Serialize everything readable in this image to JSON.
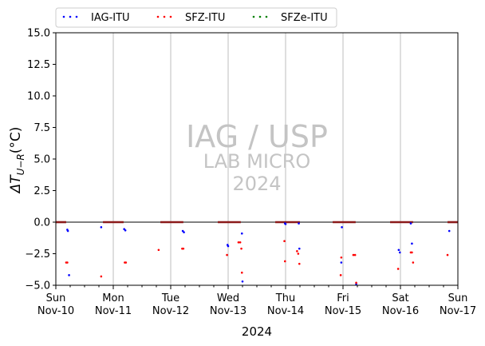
{
  "legend": [
    {
      "label": "IAG-ITU",
      "color": "#0000ff"
    },
    {
      "label": "SFZ-ITU",
      "color": "#ff0000"
    },
    {
      "label": "SFZe-ITU",
      "color": "#008000"
    }
  ],
  "watermark": {
    "line1": "IAG / USP",
    "line2": "LAB MICRO",
    "line3": "2024"
  },
  "chart_data": {
    "type": "scatter",
    "xlabel": "2024",
    "ylabel": "ΔT_{U-R}(°C)",
    "ylabel_main": "ΔT",
    "ylabel_sub": "U−R",
    "ylabel_tail": "(°C)",
    "xlim": [
      0,
      7
    ],
    "ylim": [
      -5,
      15
    ],
    "yticks": [
      -5.0,
      -2.5,
      0.0,
      2.5,
      5.0,
      7.5,
      10.0,
      12.5,
      15.0
    ],
    "ytick_labels": [
      "−5.0",
      "−2.5",
      "0.0",
      "2.5",
      "5.0",
      "7.5",
      "10.0",
      "12.5",
      "15.0"
    ],
    "xticks": [
      0,
      1,
      2,
      3,
      4,
      5,
      6,
      7
    ],
    "xtick_labels": [
      [
        "Sun",
        "Nov-10"
      ],
      [
        "Mon",
        "Nov-11"
      ],
      [
        "Tue",
        "Nov-12"
      ],
      [
        "Wed",
        "Nov-13"
      ],
      [
        "Thu",
        "Nov-14"
      ],
      [
        "Fri",
        "Nov-15"
      ],
      [
        "Sat",
        "Nov-16"
      ],
      [
        "Sun",
        "Nov-17"
      ]
    ],
    "grid": "vertical-major",
    "legend_position": "top-left",
    "reference_line_y": 0,
    "x_unit": "days since Nov-10 00:00",
    "series": [
      {
        "name": "IAG-ITU",
        "color": "#0000ff",
        "points": [
          [
            0.2,
            -0.6
          ],
          [
            0.21,
            -0.7
          ],
          [
            0.23,
            -4.2
          ],
          [
            0.79,
            -0.4
          ],
          [
            1.19,
            -0.55
          ],
          [
            1.21,
            -0.65
          ],
          [
            2.21,
            -0.7
          ],
          [
            2.23,
            -0.8
          ],
          [
            2.99,
            -1.8
          ],
          [
            3.0,
            -1.9
          ],
          [
            3.24,
            -0.9
          ],
          [
            3.25,
            -4.7
          ],
          [
            3.99,
            -0.1
          ],
          [
            4.0,
            -0.15
          ],
          [
            4.23,
            -0.1
          ],
          [
            4.24,
            -2.1
          ],
          [
            4.98,
            -0.4
          ],
          [
            4.97,
            -3.2
          ],
          [
            5.23,
            -4.9
          ],
          [
            5.97,
            -2.2
          ],
          [
            5.99,
            -2.4
          ],
          [
            6.18,
            -0.1
          ],
          [
            6.2,
            -1.7
          ],
          [
            6.85,
            -0.7
          ]
        ]
      },
      {
        "name": "SFZ-ITU",
        "color": "#ff0000",
        "points": [
          [
            0.18,
            -3.2
          ],
          [
            0.2,
            -3.2
          ],
          [
            0.79,
            -4.3
          ],
          [
            1.2,
            -3.2
          ],
          [
            1.22,
            -3.2
          ],
          [
            1.79,
            -2.2
          ],
          [
            2.2,
            -2.1
          ],
          [
            2.22,
            -2.1
          ],
          [
            2.98,
            -2.6
          ],
          [
            3.18,
            -1.6
          ],
          [
            3.21,
            -1.6
          ],
          [
            3.23,
            -2.1
          ],
          [
            3.24,
            -4.0
          ],
          [
            3.98,
            -1.5
          ],
          [
            3.99,
            -3.1
          ],
          [
            4.2,
            -2.3
          ],
          [
            4.22,
            -2.5
          ],
          [
            4.24,
            -3.3
          ],
          [
            4.97,
            -2.8
          ],
          [
            4.96,
            -4.2
          ],
          [
            5.18,
            -2.6
          ],
          [
            5.21,
            -2.6
          ],
          [
            5.23,
            -4.8
          ],
          [
            5.96,
            -3.7
          ],
          [
            6.18,
            -2.4
          ],
          [
            6.2,
            -2.4
          ],
          [
            6.22,
            -3.2
          ],
          [
            6.82,
            -2.6
          ]
        ]
      },
      {
        "name": "SFZe-ITU",
        "color": "#008000",
        "points": []
      }
    ],
    "zero_segments": [
      [
        0.0,
        0.18
      ],
      [
        0.82,
        1.18
      ],
      [
        1.82,
        2.22
      ],
      [
        2.82,
        3.22
      ],
      [
        3.82,
        4.25
      ],
      [
        4.82,
        5.22
      ],
      [
        5.82,
        6.22
      ],
      [
        6.82,
        7.0
      ]
    ]
  }
}
